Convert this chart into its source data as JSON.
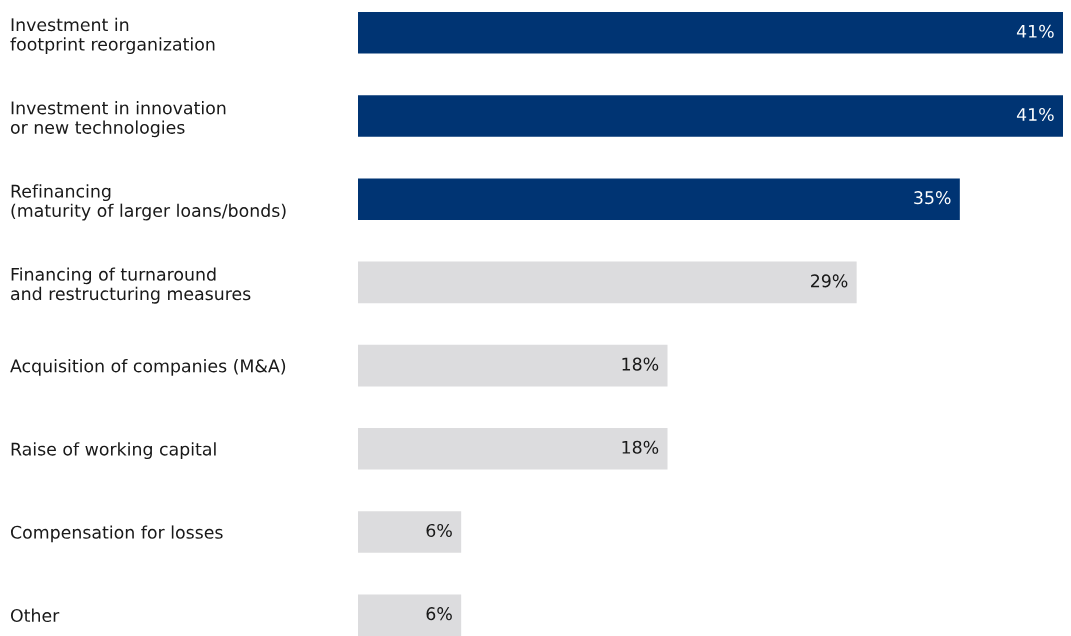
{
  "chart_data": {
    "type": "bar",
    "orientation": "horizontal",
    "data_labels": true,
    "categories": [
      "Investment in\nfootprint reorganization",
      "Investment in innovation\nor new technologies",
      "Refinancing\n(maturity of larger loans/bonds)",
      "Financing of turnaround\nand restructuring measures",
      "Acquisition of companies (M&A)",
      "Raise of working capital",
      "Compensation for losses",
      "Other"
    ],
    "values": [
      41,
      41,
      35,
      29,
      18,
      18,
      6,
      6
    ],
    "colors": [
      "#003473",
      "#003473",
      "#003473",
      "#dcdcde",
      "#dcdcde",
      "#dcdcde",
      "#dcdcde",
      "#dcdcde"
    ],
    "value_labels": [
      "41%",
      "41%",
      "35%",
      "29%",
      "18%",
      "18%",
      "6%",
      "6%"
    ]
  }
}
